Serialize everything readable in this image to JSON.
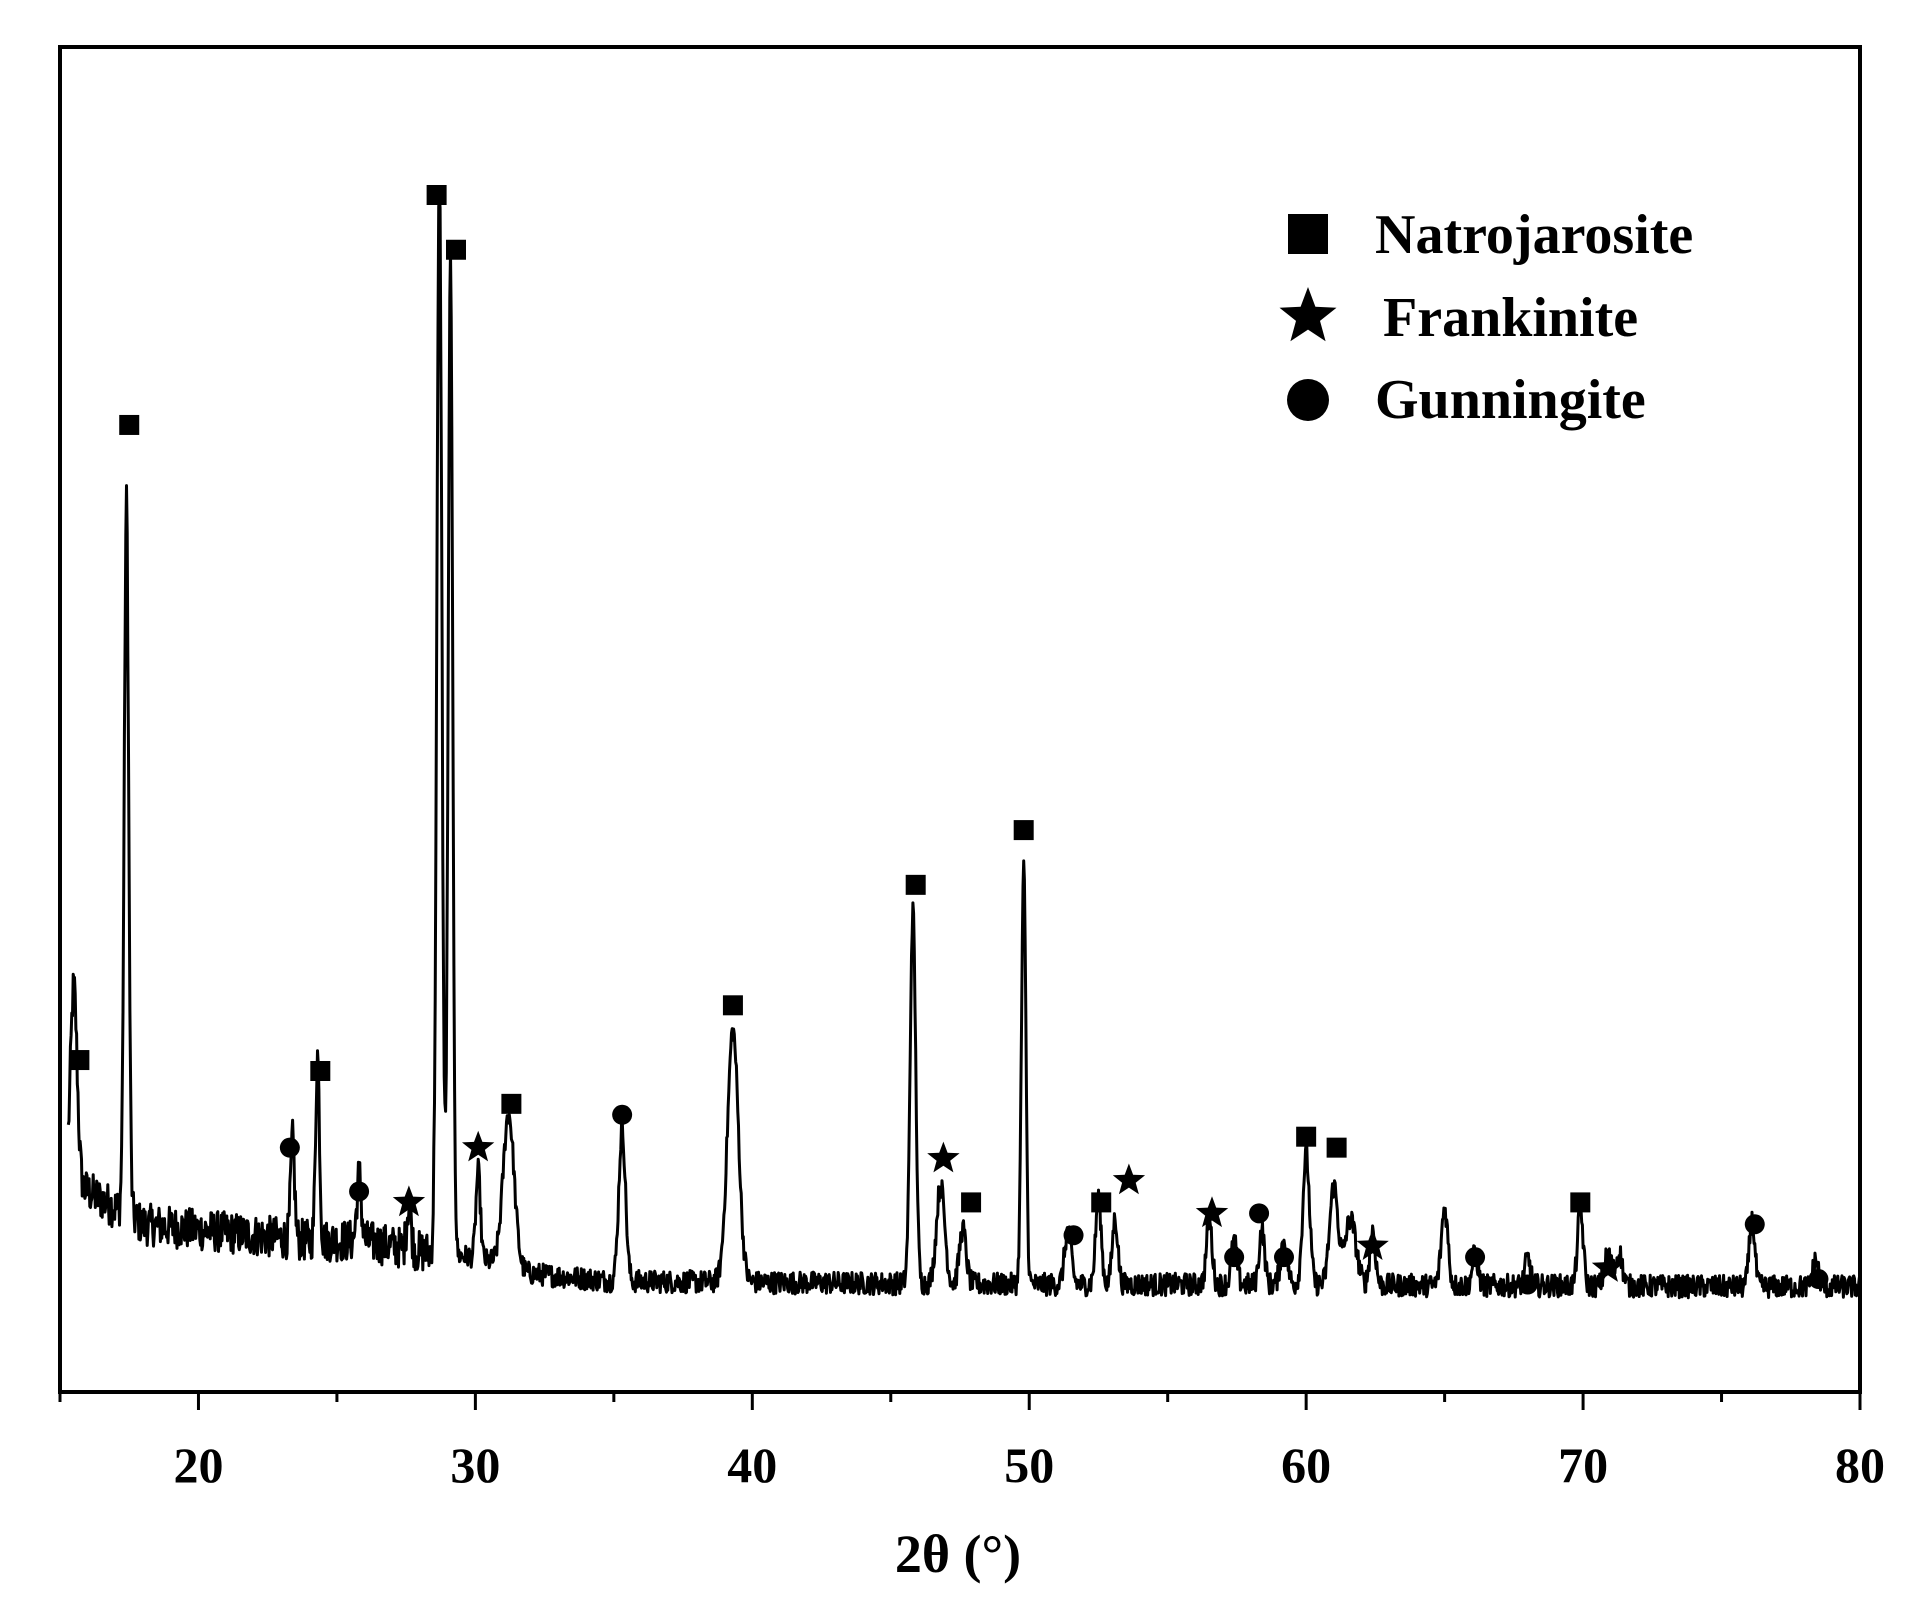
{
  "chart_data": {
    "type": "line",
    "title": "",
    "xlabel": "2θ (°)",
    "ylabel": "",
    "xlim": [
      15,
      80
    ],
    "ylim": [
      0,
      100
    ],
    "x_ticks": [
      20,
      30,
      40,
      50,
      60,
      70,
      80
    ],
    "x_tick_labels": [
      "20",
      "30",
      "40",
      "50",
      "60",
      "70",
      "80"
    ],
    "grid": false,
    "legend_position": "top-right",
    "legend": [
      {
        "marker": "square",
        "label": "Natrojarosite"
      },
      {
        "marker": "star",
        "label": "Frankinite"
      },
      {
        "marker": "circle",
        "label": "Gunningite"
      }
    ],
    "series": [
      {
        "baseline": [
          [
            15.3,
            10
          ],
          [
            16,
            9
          ],
          [
            18,
            6
          ],
          [
            20,
            5.5
          ],
          [
            22,
            5
          ],
          [
            24,
            4.5
          ],
          [
            26,
            4.5
          ],
          [
            28,
            3.5
          ],
          [
            30,
            3
          ],
          [
            32,
            1.5
          ],
          [
            35,
            0.8
          ],
          [
            40,
            0.7
          ],
          [
            45,
            0.6
          ],
          [
            50,
            0.5
          ],
          [
            55,
            0.5
          ],
          [
            60,
            0.5
          ],
          [
            65,
            0.4
          ],
          [
            70,
            0.4
          ],
          [
            75,
            0.3
          ],
          [
            80,
            0.3
          ]
        ],
        "peaks": [
          {
            "x": 15.5,
            "y": 18,
            "w": 0.12
          },
          {
            "x": 17.4,
            "y": 65,
            "w": 0.08
          },
          {
            "x": 23.4,
            "y": 9,
            "w": 0.07
          },
          {
            "x": 24.3,
            "y": 17,
            "w": 0.07
          },
          {
            "x": 25.8,
            "y": 6,
            "w": 0.08
          },
          {
            "x": 27.6,
            "y": 4,
            "w": 0.08
          },
          {
            "x": 28.7,
            "y": 98,
            "w": 0.09
          },
          {
            "x": 29.1,
            "y": 91,
            "w": 0.08
          },
          {
            "x": 30.1,
            "y": 8,
            "w": 0.08
          },
          {
            "x": 31.2,
            "y": 14,
            "w": 0.2
          },
          {
            "x": 35.3,
            "y": 14,
            "w": 0.12
          },
          {
            "x": 39.3,
            "y": 23,
            "w": 0.2
          },
          {
            "x": 45.8,
            "y": 34,
            "w": 0.1
          },
          {
            "x": 46.8,
            "y": 9,
            "w": 0.15
          },
          {
            "x": 47.6,
            "y": 5,
            "w": 0.12
          },
          {
            "x": 49.8,
            "y": 38,
            "w": 0.08
          },
          {
            "x": 51.4,
            "y": 5,
            "w": 0.12
          },
          {
            "x": 52.5,
            "y": 8,
            "w": 0.1
          },
          {
            "x": 53.1,
            "y": 6,
            "w": 0.1
          },
          {
            "x": 56.5,
            "y": 6,
            "w": 0.1
          },
          {
            "x": 57.4,
            "y": 4,
            "w": 0.1
          },
          {
            "x": 58.4,
            "y": 5,
            "w": 0.1
          },
          {
            "x": 59.2,
            "y": 4,
            "w": 0.12
          },
          {
            "x": 60.0,
            "y": 12,
            "w": 0.12
          },
          {
            "x": 61.0,
            "y": 9,
            "w": 0.15
          },
          {
            "x": 61.6,
            "y": 6,
            "w": 0.2
          },
          {
            "x": 62.4,
            "y": 5,
            "w": 0.1
          },
          {
            "x": 65.0,
            "y": 7,
            "w": 0.12
          },
          {
            "x": 66.1,
            "y": 3,
            "w": 0.1
          },
          {
            "x": 68.0,
            "y": 2.5,
            "w": 0.1
          },
          {
            "x": 69.9,
            "y": 7,
            "w": 0.1
          },
          {
            "x": 70.9,
            "y": 3,
            "w": 0.12
          },
          {
            "x": 71.3,
            "y": 3,
            "w": 0.12
          },
          {
            "x": 76.1,
            "y": 6,
            "w": 0.1
          },
          {
            "x": 78.4,
            "y": 2.5,
            "w": 0.1
          }
        ],
        "noise": 1.6
      }
    ],
    "annotations": [
      {
        "marker": "square",
        "x": 15.7,
        "y": 21
      },
      {
        "marker": "square",
        "x": 17.5,
        "y": 79
      },
      {
        "marker": "square",
        "x": 24.4,
        "y": 20
      },
      {
        "marker": "square",
        "x": 28.6,
        "y": 100
      },
      {
        "marker": "square",
        "x": 29.3,
        "y": 95
      },
      {
        "marker": "square",
        "x": 31.3,
        "y": 17
      },
      {
        "marker": "square",
        "x": 39.3,
        "y": 26
      },
      {
        "marker": "square",
        "x": 45.9,
        "y": 37
      },
      {
        "marker": "square",
        "x": 47.9,
        "y": 8
      },
      {
        "marker": "square",
        "x": 49.8,
        "y": 42
      },
      {
        "marker": "square",
        "x": 52.6,
        "y": 8
      },
      {
        "marker": "square",
        "x": 60.0,
        "y": 14
      },
      {
        "marker": "square",
        "x": 61.1,
        "y": 13
      },
      {
        "marker": "square",
        "x": 69.9,
        "y": 8
      },
      {
        "marker": "star",
        "x": 27.6,
        "y": 8
      },
      {
        "marker": "star",
        "x": 30.1,
        "y": 13
      },
      {
        "marker": "star",
        "x": 46.9,
        "y": 12
      },
      {
        "marker": "star",
        "x": 53.6,
        "y": 10
      },
      {
        "marker": "star",
        "x": 56.6,
        "y": 7
      },
      {
        "marker": "star",
        "x": 62.4,
        "y": 4
      },
      {
        "marker": "star",
        "x": 70.9,
        "y": 2
      },
      {
        "marker": "circle",
        "x": 23.3,
        "y": 13
      },
      {
        "marker": "circle",
        "x": 25.8,
        "y": 9
      },
      {
        "marker": "circle",
        "x": 35.3,
        "y": 16
      },
      {
        "marker": "circle",
        "x": 51.6,
        "y": 5
      },
      {
        "marker": "circle",
        "x": 57.4,
        "y": 3
      },
      {
        "marker": "circle",
        "x": 58.3,
        "y": 7
      },
      {
        "marker": "circle",
        "x": 59.2,
        "y": 3
      },
      {
        "marker": "circle",
        "x": 66.1,
        "y": 3
      },
      {
        "marker": "circle",
        "x": 68.0,
        "y": 0.5
      },
      {
        "marker": "circle",
        "x": 76.2,
        "y": 6
      },
      {
        "marker": "circle",
        "x": 78.5,
        "y": 1
      }
    ]
  }
}
